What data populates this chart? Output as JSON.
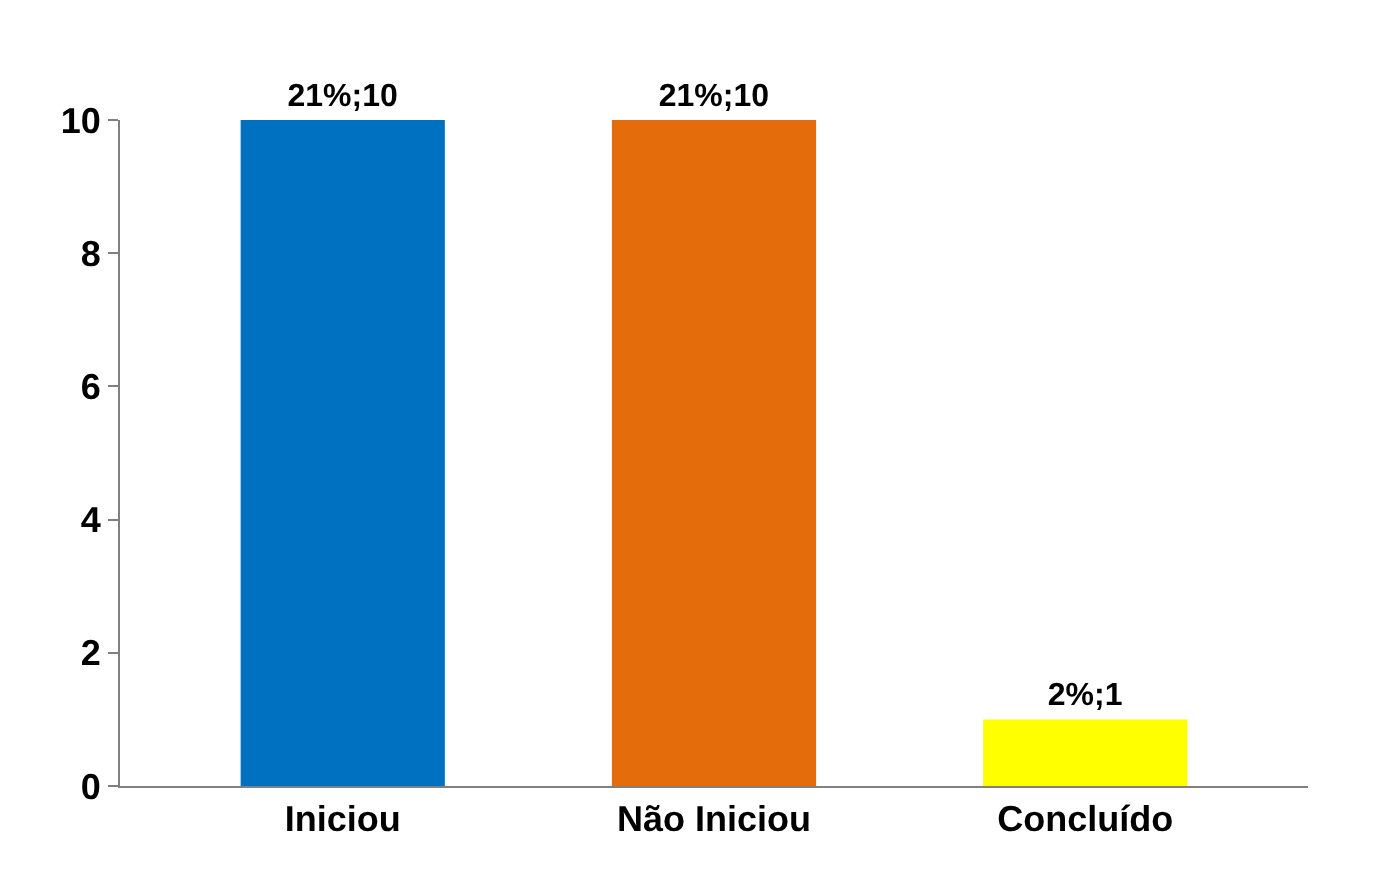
{
  "chart_data": {
    "type": "bar",
    "categories": [
      "Iniciou",
      "Não Iniciou",
      "Concluído"
    ],
    "values": [
      10,
      10,
      1
    ],
    "colors": [
      "#0070c0",
      "#e46c0a",
      "#ffff00"
    ],
    "value_labels": [
      "21%;10",
      "21%;10",
      "2%;1"
    ],
    "ylim": [
      0,
      10
    ],
    "yticks": [
      0,
      2,
      4,
      6,
      8,
      10
    ]
  }
}
